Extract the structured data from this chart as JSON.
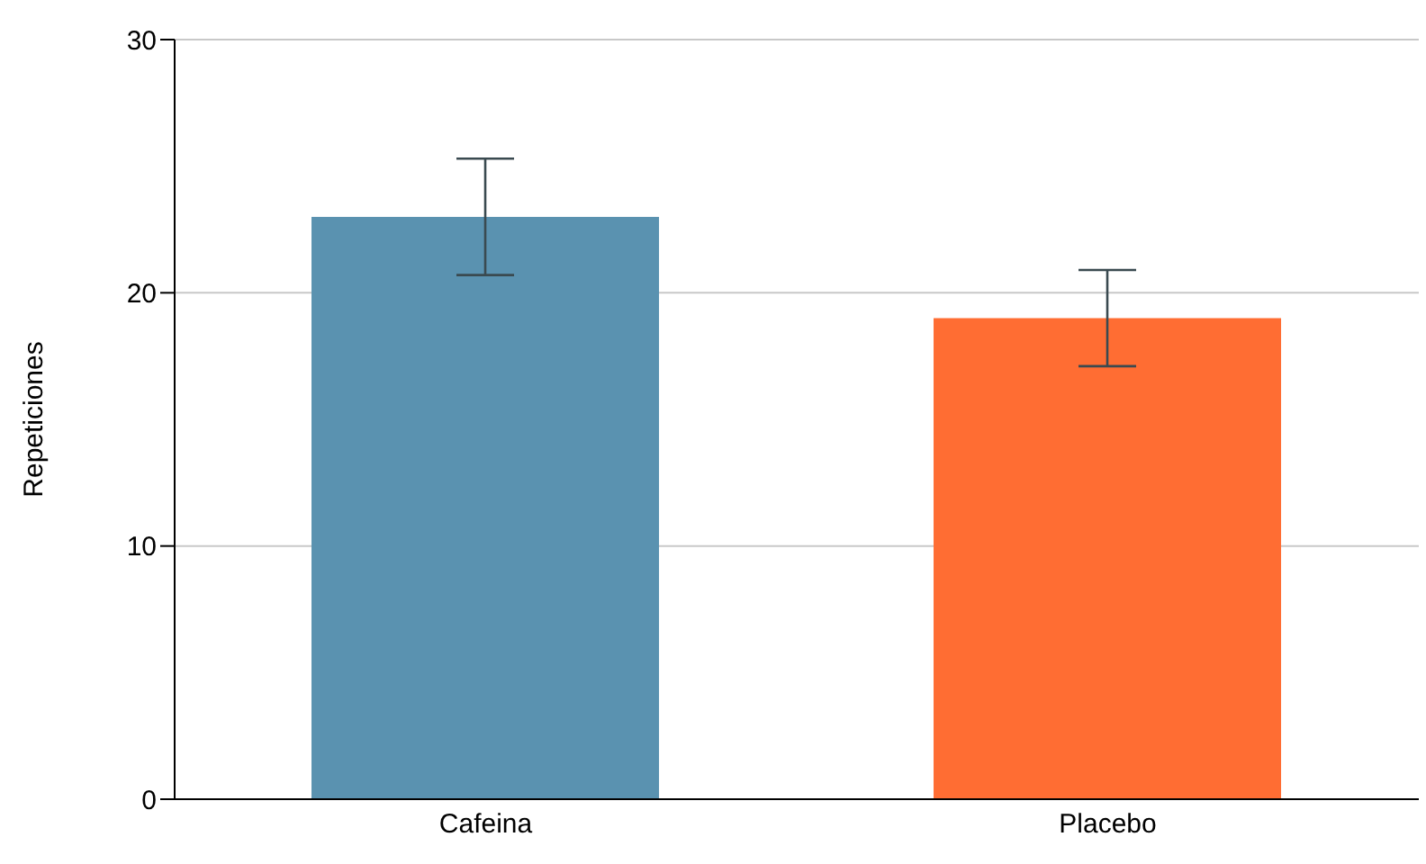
{
  "chart_data": {
    "type": "bar",
    "ylabel": "Repeticiones",
    "categories": [
      "Cafeina",
      "Placebo"
    ],
    "values": [
      23,
      19
    ],
    "colors": [
      "#5a92b0",
      "#ff6d33"
    ],
    "errors": [
      2.3,
      1.9
    ],
    "ylim": [
      0,
      30
    ],
    "yticks": [
      0,
      10,
      20,
      30
    ],
    "grid": "y",
    "legend": false
  }
}
